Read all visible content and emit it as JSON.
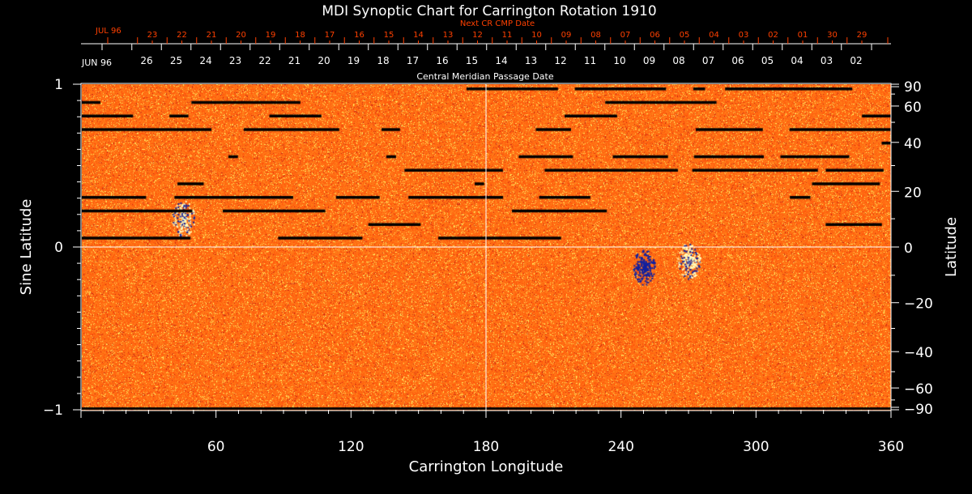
{
  "chart_data": {
    "type": "heatmap",
    "title": "MDI Synoptic Chart for Carrington Rotation 1910",
    "xlabel": "Carrington Longitude",
    "ylabel_left": "Sine Latitude",
    "ylabel_right": "Latitude",
    "xlim": [
      0,
      360
    ],
    "ylim": [
      -1,
      1
    ],
    "x_ticks": [
      60,
      120,
      180,
      240,
      300,
      360
    ],
    "y_ticks_left": [
      1,
      0,
      -1
    ],
    "y_ticks_left_labels": [
      "1",
      "0",
      "−1"
    ],
    "y_ticks_right": [
      90,
      60,
      40,
      20,
      0,
      -20,
      -40,
      -60,
      -90
    ],
    "y_ticks_right_labels": [
      "90",
      "60",
      "40",
      "20",
      "0",
      "−20",
      "−40",
      "−60",
      "−90"
    ],
    "top_axis": {
      "label": "Central Meridian Passage Date",
      "month_label": "JUN 96",
      "dates": [
        "26",
        "25",
        "24",
        "23",
        "22",
        "21",
        "20",
        "19",
        "18",
        "17",
        "16",
        "15",
        "14",
        "13",
        "12",
        "11",
        "10",
        "09",
        "08",
        "07",
        "06",
        "05",
        "04",
        "03",
        "02"
      ]
    },
    "next_axis": {
      "label": "Next CR CMP Date",
      "month_label": "JUL 96",
      "dates": [
        "23",
        "22",
        "21",
        "20",
        "19",
        "18",
        "17",
        "16",
        "15",
        "14",
        "13",
        "12",
        "11",
        "10",
        "09",
        "08",
        "07",
        "06",
        "05",
        "04",
        "03",
        "02",
        "01",
        "30",
        "29"
      ]
    },
    "features": [
      {
        "name": "active region",
        "lon": 45,
        "sinlat": 0.18
      },
      {
        "name": "active region",
        "lon": 250,
        "sinlat": -0.12
      },
      {
        "name": "active region",
        "lon": 270,
        "sinlat": -0.08
      }
    ],
    "colors": {
      "background": "#000000",
      "field": "#ff5a10",
      "negative": "#1020a0",
      "positive": "#ffffc0",
      "next_axis": "#ff4000",
      "axes": "#ffffff"
    }
  }
}
